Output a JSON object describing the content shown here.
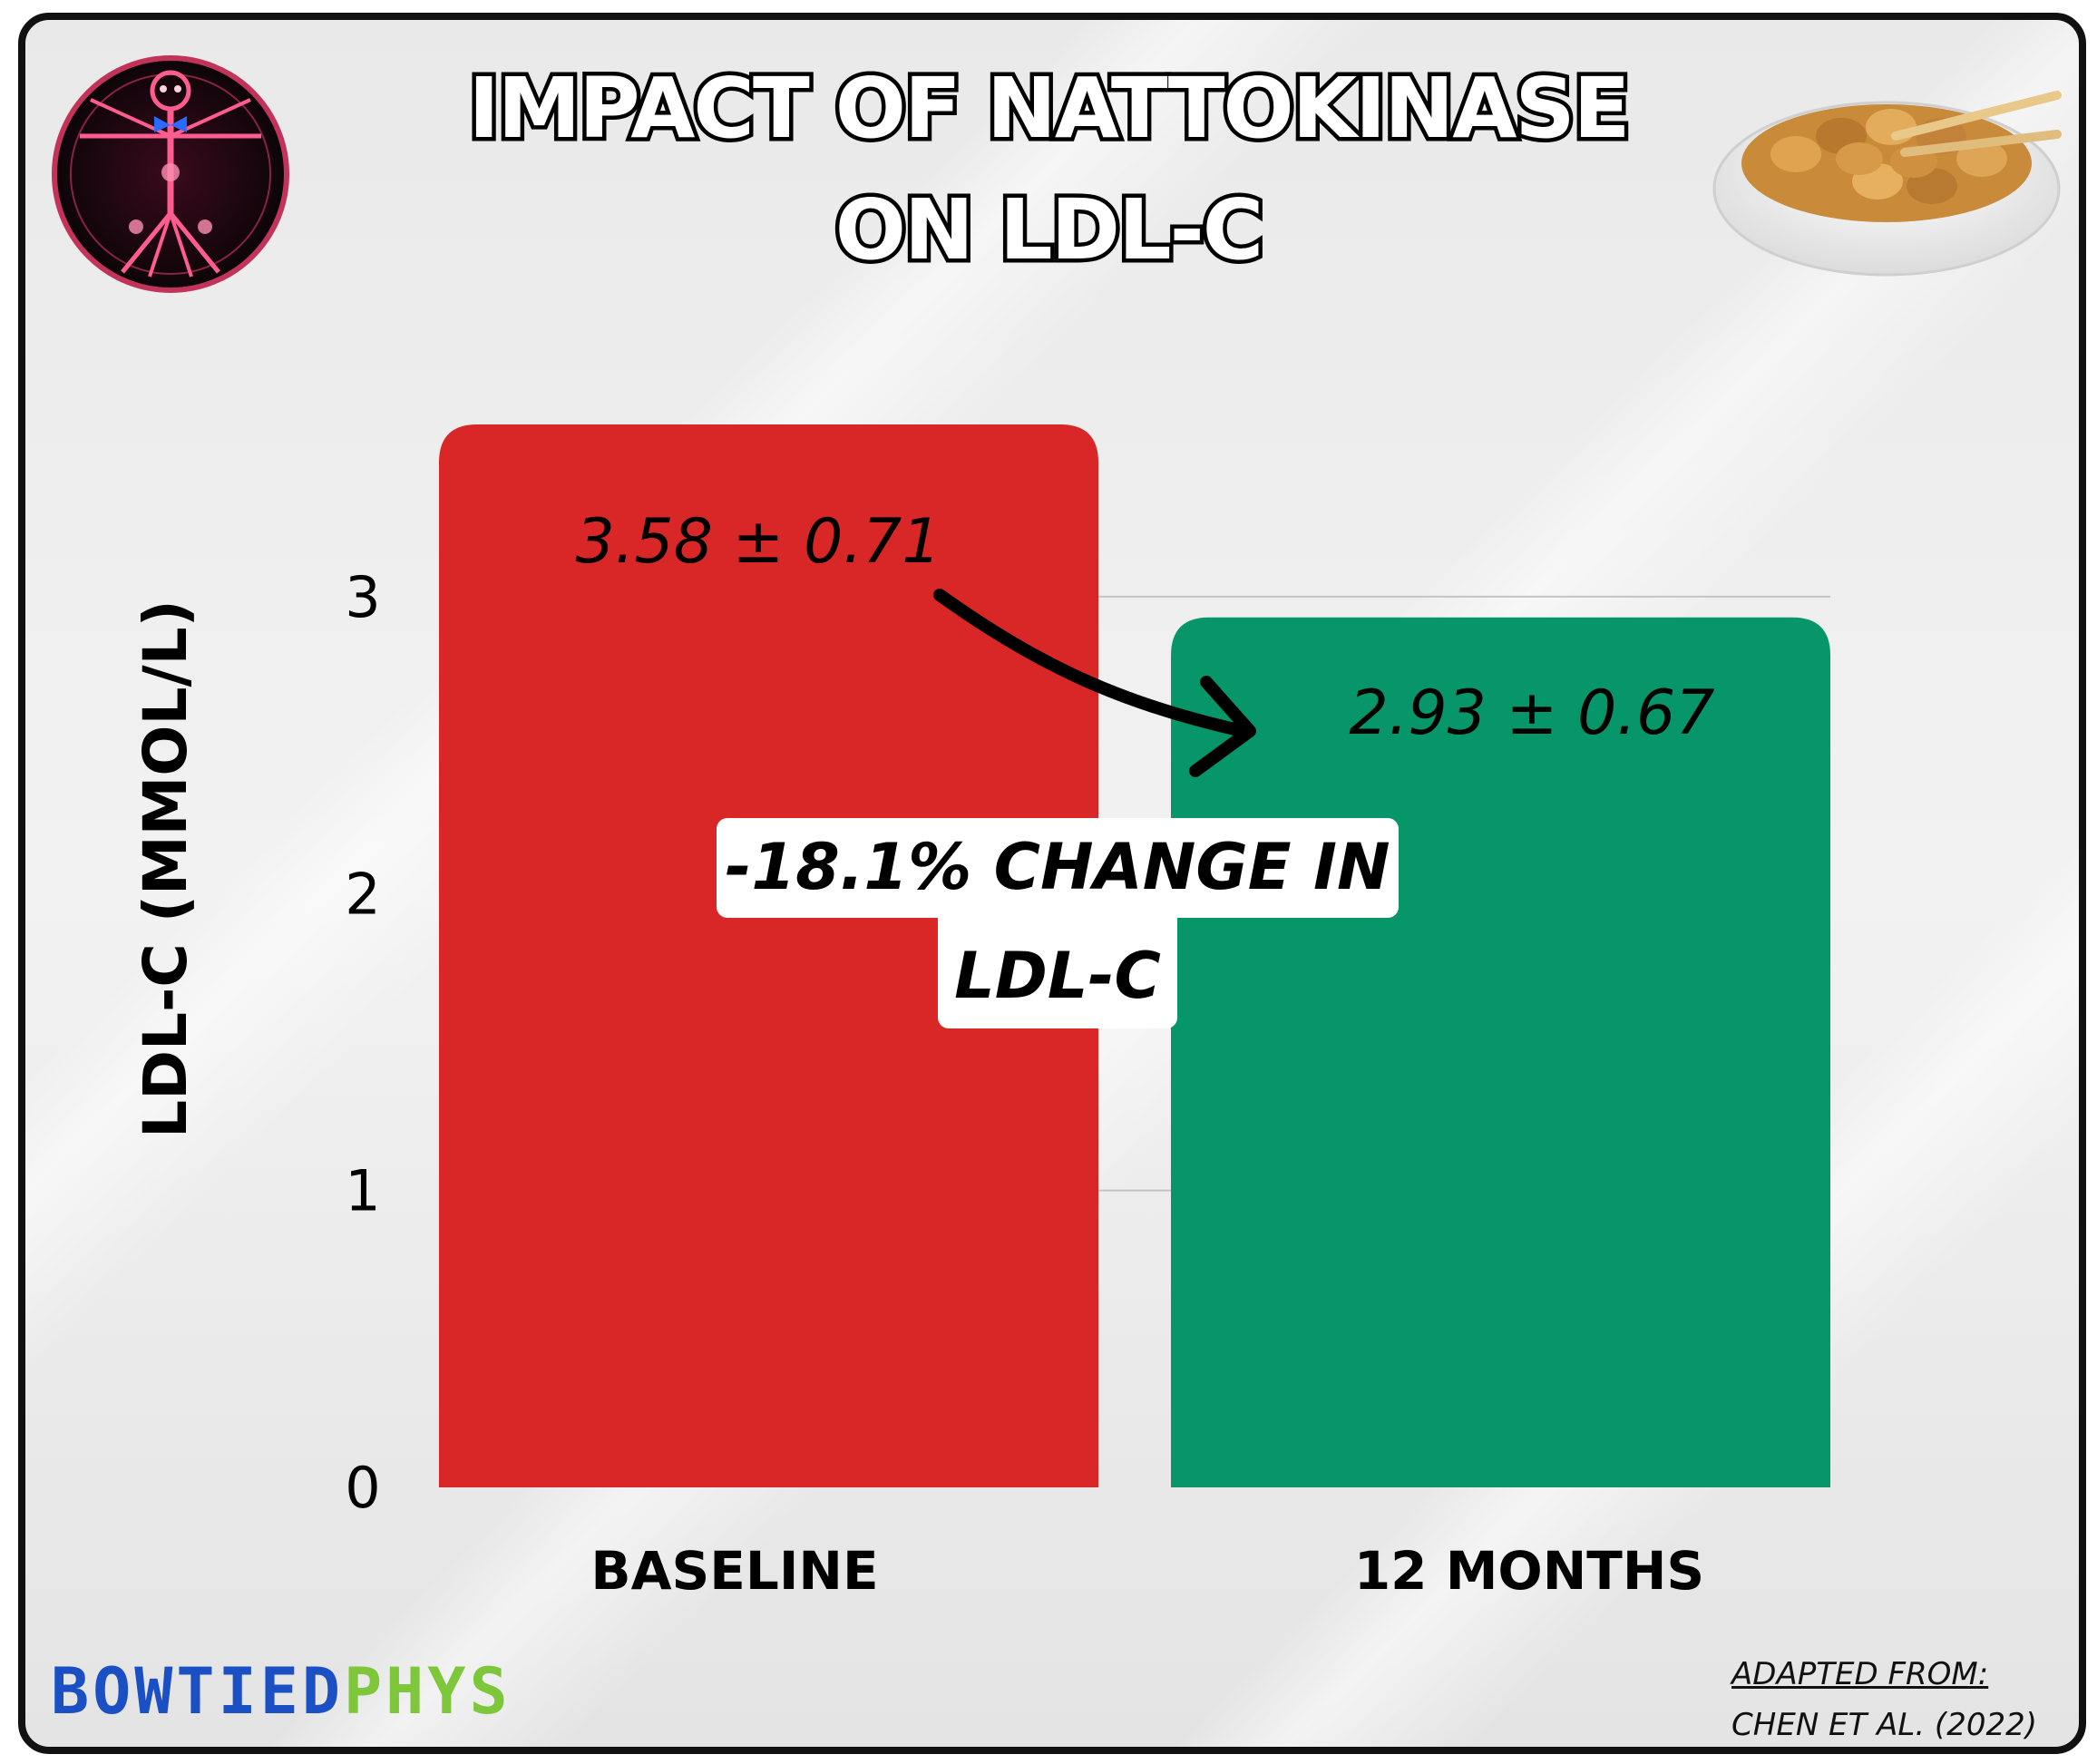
{
  "title_lines": [
    "IMPACT OF NATTOKINASE",
    "ON LDL-C"
  ],
  "chart_data": {
    "type": "bar",
    "title": "IMPACT OF NATTOKINASE ON LDL-C",
    "ylabel": "LDL-C (MMOL/L)",
    "xlabel": "",
    "categories": [
      "BASELINE",
      "12 MONTHS"
    ],
    "values": [
      3.58,
      2.93
    ],
    "value_labels": [
      "3.58 ± 0.71",
      "2.93 ± 0.67"
    ],
    "yticks": [
      0,
      1,
      2,
      3
    ],
    "ylim": [
      0,
      3.58
    ],
    "grid": true,
    "bar_colors": [
      "#d92626",
      "#069669"
    ],
    "annotation": [
      "-18.1% CHANGE IN",
      "LDL-C"
    ]
  },
  "brand": {
    "part1": "BOWTIED",
    "part2": "PHYS"
  },
  "source": {
    "line1": "ADAPTED FROM:",
    "line2": "CHEN ET AL. (2022)"
  },
  "icons": [
    "vitruvian-man-logo-icon",
    "natto-bowl-icon"
  ],
  "colors": {
    "brand_blue": "#1b4fc4",
    "brand_green": "#7ec63a",
    "frame": "#111111"
  }
}
